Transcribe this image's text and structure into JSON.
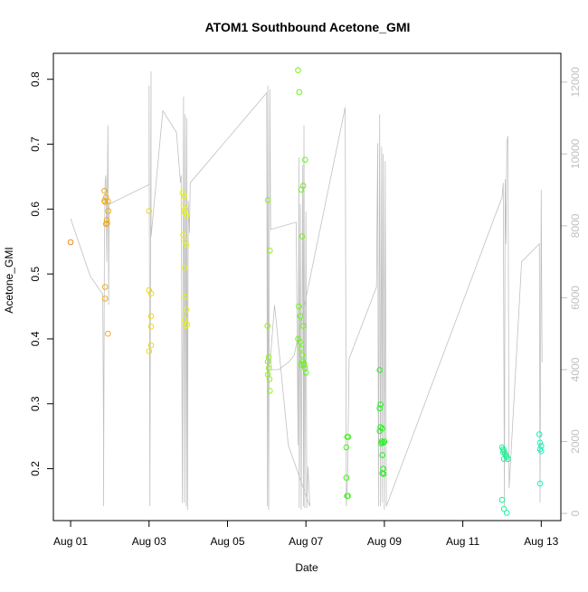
{
  "chart_data": {
    "type": "scatter",
    "title": "ATOM1 Southbound Acetone_GMI",
    "xlabel": "Date",
    "ylabel": "Acetone_GMI",
    "x_ticks": [
      {
        "label": "Aug 01",
        "day": 1
      },
      {
        "label": "Aug 03",
        "day": 3
      },
      {
        "label": "Aug 05",
        "day": 5
      },
      {
        "label": "Aug 07",
        "day": 7
      },
      {
        "label": "Aug 09",
        "day": 9
      },
      {
        "label": "Aug 11",
        "day": 11
      },
      {
        "label": "Aug 13",
        "day": 13
      }
    ],
    "xlim": [
      0.56,
      13.5
    ],
    "ylim": [
      0.12,
      0.84
    ],
    "y_ticks": [
      0.2,
      0.3,
      0.4,
      0.5,
      0.6,
      0.7,
      0.8
    ],
    "y_tick_labels": [
      "0.2",
      "0.3",
      "0.4",
      "0.5",
      "0.6",
      "0.7",
      "0.8"
    ],
    "y2_lim": [
      -200,
      12800
    ],
    "y2_ticks": [
      0,
      2000,
      4000,
      6000,
      8000,
      10000,
      12000
    ],
    "y2_tick_labels": [
      "0",
      "2000",
      "4000",
      "6000",
      "8000",
      "10000",
      "12000"
    ],
    "grid": false,
    "colors": {
      "points_early": "#f28c1e",
      "points_mid": "#9ef51e",
      "points_late": "#1ef5b4",
      "altitude_line": "#c0c0c0"
    },
    "series": [
      {
        "values": [
          [
            1.0,
            0.549
          ],
          [
            1.86,
            0.628
          ],
          [
            1.86,
            0.613
          ],
          [
            1.88,
            0.611
          ],
          [
            1.9,
            0.618
          ],
          [
            1.9,
            0.577
          ],
          [
            1.92,
            0.583
          ],
          [
            1.93,
            0.578
          ],
          [
            1.95,
            0.612
          ],
          [
            1.96,
            0.597
          ],
          [
            1.88,
            0.48
          ],
          [
            1.88,
            0.462
          ],
          [
            1.95,
            0.408
          ],
          [
            3.0,
            0.597
          ],
          [
            3.0,
            0.475
          ],
          [
            3.05,
            0.435
          ],
          [
            3.05,
            0.419
          ],
          [
            3.05,
            0.47
          ],
          [
            3.05,
            0.39
          ],
          [
            3.0,
            0.381
          ],
          [
            3.85,
            0.625
          ],
          [
            3.9,
            0.62
          ],
          [
            3.88,
            0.605
          ],
          [
            3.92,
            0.6
          ],
          [
            3.9,
            0.595
          ],
          [
            3.95,
            0.59
          ],
          [
            3.87,
            0.56
          ],
          [
            3.92,
            0.55
          ],
          [
            3.95,
            0.545
          ],
          [
            3.9,
            0.51
          ],
          [
            3.92,
            0.465
          ],
          [
            3.95,
            0.445
          ],
          [
            3.9,
            0.43
          ],
          [
            3.93,
            0.42
          ],
          [
            3.97,
            0.422
          ],
          [
            6.03,
            0.614
          ],
          [
            6.08,
            0.536
          ],
          [
            6.02,
            0.42
          ],
          [
            6.05,
            0.372
          ],
          [
            6.03,
            0.365
          ],
          [
            6.05,
            0.355
          ],
          [
            6.03,
            0.345
          ],
          [
            6.07,
            0.338
          ],
          [
            6.08,
            0.32
          ],
          [
            6.8,
            0.814
          ],
          [
            6.83,
            0.78
          ],
          [
            6.98,
            0.676
          ],
          [
            6.93,
            0.636
          ],
          [
            6.88,
            0.63
          ],
          [
            6.9,
            0.558
          ],
          [
            6.82,
            0.45
          ],
          [
            6.85,
            0.435
          ],
          [
            6.93,
            0.42
          ],
          [
            6.8,
            0.4
          ],
          [
            6.85,
            0.395
          ],
          [
            6.88,
            0.385
          ],
          [
            6.9,
            0.375
          ],
          [
            6.92,
            0.365
          ],
          [
            6.95,
            0.36
          ],
          [
            6.98,
            0.355
          ],
          [
            7.0,
            0.348
          ],
          [
            6.88,
            0.36
          ],
          [
            6.95,
            0.362
          ],
          [
            8.05,
            0.249
          ],
          [
            8.08,
            0.249
          ],
          [
            8.03,
            0.233
          ],
          [
            8.03,
            0.186
          ],
          [
            8.05,
            0.158
          ],
          [
            8.07,
            0.158
          ],
          [
            8.88,
            0.352
          ],
          [
            8.9,
            0.299
          ],
          [
            8.88,
            0.293
          ],
          [
            8.9,
            0.264
          ],
          [
            8.95,
            0.262
          ],
          [
            8.88,
            0.258
          ],
          [
            8.93,
            0.242
          ],
          [
            8.97,
            0.24
          ],
          [
            9.0,
            0.242
          ],
          [
            8.92,
            0.239
          ],
          [
            8.95,
            0.221
          ],
          [
            8.97,
            0.2
          ],
          [
            8.95,
            0.193
          ],
          [
            8.98,
            0.192
          ],
          [
            12.0,
            0.233
          ],
          [
            12.03,
            0.23
          ],
          [
            12.05,
            0.228
          ],
          [
            12.03,
            0.225
          ],
          [
            12.08,
            0.223
          ],
          [
            12.1,
            0.22
          ],
          [
            12.05,
            0.215
          ],
          [
            12.12,
            0.218
          ],
          [
            12.15,
            0.215
          ],
          [
            12.0,
            0.152
          ],
          [
            12.05,
            0.138
          ],
          [
            12.12,
            0.132
          ],
          [
            12.95,
            0.253
          ],
          [
            12.97,
            0.24
          ],
          [
            13.0,
            0.235
          ],
          [
            12.97,
            0.23
          ],
          [
            13.0,
            0.227
          ],
          [
            12.97,
            0.177
          ]
        ]
      },
      {
        "axis": "y2",
        "values": [
          [
            1.0,
            8200
          ],
          [
            1.5,
            6600
          ],
          [
            1.82,
            6100
          ],
          [
            1.84,
            2000
          ],
          [
            1.84,
            200
          ],
          [
            1.86,
            7400
          ],
          [
            1.88,
            9200
          ],
          [
            1.9,
            9400
          ],
          [
            1.92,
            7000
          ],
          [
            1.95,
            10800
          ],
          [
            1.97,
            5800
          ],
          [
            1.98,
            8600
          ],
          [
            3.0,
            9150
          ],
          [
            3.0,
            11900
          ],
          [
            3.02,
            200
          ],
          [
            3.05,
            12300
          ],
          [
            3.05,
            7700
          ],
          [
            3.35,
            11200
          ],
          [
            3.7,
            10600
          ],
          [
            3.8,
            9200
          ],
          [
            3.82,
            9400
          ],
          [
            3.85,
            300
          ],
          [
            3.88,
            11600
          ],
          [
            3.9,
            300
          ],
          [
            3.92,
            11100
          ],
          [
            3.95,
            200
          ],
          [
            3.96,
            11000
          ],
          [
            3.98,
            100
          ],
          [
            4.0,
            8700
          ],
          [
            4.03,
            7800
          ],
          [
            4.05,
            9200
          ],
          [
            6.0,
            11700
          ],
          [
            6.02,
            200
          ],
          [
            6.03,
            11900
          ],
          [
            6.05,
            100
          ],
          [
            6.08,
            11800
          ],
          [
            6.1,
            7900
          ],
          [
            6.75,
            8100
          ],
          [
            6.8,
            1900
          ],
          [
            6.82,
            9900
          ],
          [
            6.83,
            150
          ],
          [
            6.86,
            8600
          ],
          [
            6.88,
            100
          ],
          [
            6.92,
            9700
          ],
          [
            6.94,
            200
          ],
          [
            6.95,
            10800
          ],
          [
            6.97,
            150
          ],
          [
            7.0,
            8400
          ],
          [
            7.02,
            150
          ],
          [
            7.05,
            1300
          ],
          [
            7.1,
            200
          ],
          [
            6.55,
            1900
          ],
          [
            6.2,
            5800
          ],
          [
            6.1,
            4400
          ],
          [
            6.12,
            4000
          ],
          [
            6.3,
            4000
          ],
          [
            6.55,
            4200
          ],
          [
            6.7,
            4400
          ],
          [
            8.0,
            11300
          ],
          [
            8.03,
            200
          ],
          [
            8.06,
            1000
          ],
          [
            8.1,
            4300
          ],
          [
            8.8,
            6300
          ],
          [
            8.83,
            10300
          ],
          [
            8.85,
            200
          ],
          [
            8.88,
            11100
          ],
          [
            8.9,
            200
          ],
          [
            8.93,
            10200
          ],
          [
            8.95,
            300
          ],
          [
            8.97,
            10000
          ],
          [
            9.0,
            100
          ],
          [
            9.02,
            9800
          ],
          [
            9.05,
            200
          ],
          [
            12.0,
            8800
          ],
          [
            12.03,
            9200
          ],
          [
            12.06,
            200
          ],
          [
            12.08,
            9300
          ],
          [
            12.1,
            7500
          ],
          [
            12.12,
            10300
          ],
          [
            12.15,
            10500
          ],
          [
            12.18,
            700
          ],
          [
            12.5,
            7000
          ],
          [
            12.95,
            7500
          ],
          [
            12.97,
            300
          ],
          [
            13.0,
            9000
          ],
          [
            13.02,
            4200
          ]
        ]
      }
    ]
  }
}
